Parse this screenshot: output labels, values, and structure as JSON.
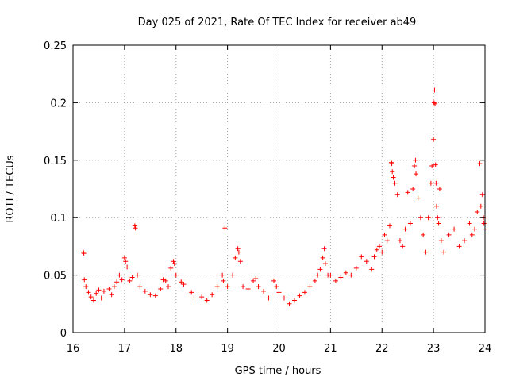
{
  "chart_data": {
    "type": "scatter",
    "title": "Day 025 of 2021, Rate Of TEC Index for receiver ab49",
    "xlabel": "GPS time / hours",
    "ylabel": "ROTI / TECUs",
    "xlim": [
      16,
      24
    ],
    "ylim": [
      0,
      0.25
    ],
    "x_ticks": [
      "16",
      "17",
      "18",
      "19",
      "20",
      "21",
      "22",
      "23",
      "24"
    ],
    "y_ticks": [
      "0",
      "0.05",
      "0.1",
      "0.15",
      "0.2",
      "0.25"
    ],
    "grid": true,
    "marker": "+",
    "series_color": "#ff0000",
    "series": [
      {
        "name": "ROTI",
        "points": [
          [
            16.2,
            0.07
          ],
          [
            16.21,
            0.069
          ],
          [
            16.22,
            0.046
          ],
          [
            16.25,
            0.04
          ],
          [
            16.3,
            0.035
          ],
          [
            16.35,
            0.031
          ],
          [
            16.4,
            0.028
          ],
          [
            16.45,
            0.034
          ],
          [
            16.5,
            0.037
          ],
          [
            16.55,
            0.03
          ],
          [
            16.6,
            0.036
          ],
          [
            16.7,
            0.038
          ],
          [
            16.75,
            0.033
          ],
          [
            16.8,
            0.04
          ],
          [
            16.85,
            0.044
          ],
          [
            16.9,
            0.05
          ],
          [
            16.95,
            0.046
          ],
          [
            17.0,
            0.065
          ],
          [
            17.02,
            0.062
          ],
          [
            17.05,
            0.057
          ],
          [
            17.1,
            0.045
          ],
          [
            17.15,
            0.048
          ],
          [
            17.2,
            0.093
          ],
          [
            17.21,
            0.091
          ],
          [
            17.25,
            0.05
          ],
          [
            17.3,
            0.04
          ],
          [
            17.4,
            0.036
          ],
          [
            17.5,
            0.033
          ],
          [
            17.6,
            0.032
          ],
          [
            17.7,
            0.038
          ],
          [
            17.75,
            0.046
          ],
          [
            17.8,
            0.045
          ],
          [
            17.85,
            0.04
          ],
          [
            17.9,
            0.056
          ],
          [
            17.95,
            0.062
          ],
          [
            17.97,
            0.06
          ],
          [
            18.0,
            0.05
          ],
          [
            18.1,
            0.044
          ],
          [
            18.15,
            0.042
          ],
          [
            18.3,
            0.035
          ],
          [
            18.35,
            0.03
          ],
          [
            18.5,
            0.031
          ],
          [
            18.6,
            0.028
          ],
          [
            18.7,
            0.033
          ],
          [
            18.8,
            0.04
          ],
          [
            18.9,
            0.05
          ],
          [
            18.92,
            0.045
          ],
          [
            18.95,
            0.091
          ],
          [
            19.0,
            0.04
          ],
          [
            19.1,
            0.05
          ],
          [
            19.15,
            0.065
          ],
          [
            19.2,
            0.073
          ],
          [
            19.22,
            0.07
          ],
          [
            19.25,
            0.062
          ],
          [
            19.3,
            0.04
          ],
          [
            19.4,
            0.038
          ],
          [
            19.5,
            0.045
          ],
          [
            19.55,
            0.047
          ],
          [
            19.6,
            0.04
          ],
          [
            19.7,
            0.036
          ],
          [
            19.8,
            0.03
          ],
          [
            19.9,
            0.045
          ],
          [
            19.95,
            0.04
          ],
          [
            20.0,
            0.035
          ],
          [
            20.1,
            0.03
          ],
          [
            20.2,
            0.025
          ],
          [
            20.3,
            0.028
          ],
          [
            20.4,
            0.032
          ],
          [
            20.5,
            0.035
          ],
          [
            20.6,
            0.04
          ],
          [
            20.7,
            0.045
          ],
          [
            20.75,
            0.05
          ],
          [
            20.8,
            0.055
          ],
          [
            20.85,
            0.065
          ],
          [
            20.88,
            0.073
          ],
          [
            20.9,
            0.06
          ],
          [
            20.95,
            0.05
          ],
          [
            21.0,
            0.05
          ],
          [
            21.1,
            0.045
          ],
          [
            21.2,
            0.048
          ],
          [
            21.3,
            0.052
          ],
          [
            21.4,
            0.05
          ],
          [
            21.5,
            0.056
          ],
          [
            21.6,
            0.066
          ],
          [
            21.7,
            0.062
          ],
          [
            21.8,
            0.055
          ],
          [
            21.85,
            0.066
          ],
          [
            21.9,
            0.072
          ],
          [
            21.95,
            0.075
          ],
          [
            22.0,
            0.07
          ],
          [
            22.05,
            0.085
          ],
          [
            22.1,
            0.08
          ],
          [
            22.15,
            0.093
          ],
          [
            22.18,
            0.148
          ],
          [
            22.19,
            0.147
          ],
          [
            22.2,
            0.14
          ],
          [
            22.22,
            0.135
          ],
          [
            22.25,
            0.13
          ],
          [
            22.3,
            0.12
          ],
          [
            22.35,
            0.08
          ],
          [
            22.4,
            0.075
          ],
          [
            22.45,
            0.09
          ],
          [
            22.5,
            0.122
          ],
          [
            22.55,
            0.095
          ],
          [
            22.6,
            0.125
          ],
          [
            22.63,
            0.145
          ],
          [
            22.65,
            0.15
          ],
          [
            22.66,
            0.138
          ],
          [
            22.7,
            0.117
          ],
          [
            22.75,
            0.1
          ],
          [
            22.8,
            0.085
          ],
          [
            22.85,
            0.07
          ],
          [
            22.9,
            0.1
          ],
          [
            22.95,
            0.13
          ],
          [
            22.97,
            0.145
          ],
          [
            23.0,
            0.168
          ],
          [
            23.01,
            0.2
          ],
          [
            23.02,
            0.211
          ],
          [
            23.03,
            0.199
          ],
          [
            23.04,
            0.146
          ],
          [
            23.05,
            0.13
          ],
          [
            23.06,
            0.11
          ],
          [
            23.08,
            0.1
          ],
          [
            23.1,
            0.095
          ],
          [
            23.12,
            0.125
          ],
          [
            23.15,
            0.08
          ],
          [
            23.2,
            0.07
          ],
          [
            23.3,
            0.085
          ],
          [
            23.4,
            0.09
          ],
          [
            23.5,
            0.075
          ],
          [
            23.6,
            0.08
          ],
          [
            23.7,
            0.095
          ],
          [
            23.75,
            0.085
          ],
          [
            23.8,
            0.09
          ],
          [
            23.85,
            0.105
          ],
          [
            23.9,
            0.147
          ],
          [
            23.92,
            0.11
          ],
          [
            23.95,
            0.12
          ],
          [
            23.97,
            0.1
          ],
          [
            23.98,
            0.095
          ],
          [
            24.0,
            0.09
          ]
        ]
      }
    ]
  }
}
